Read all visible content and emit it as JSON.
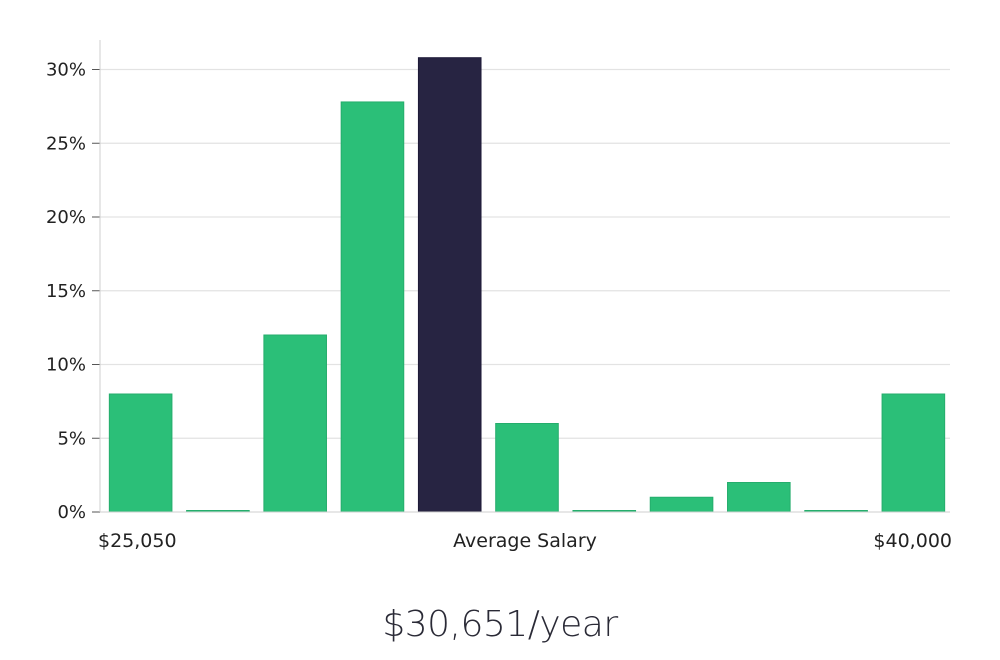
{
  "chart_data": {
    "type": "bar",
    "values": [
      8,
      0,
      12,
      27.8,
      30.8,
      6,
      0,
      1,
      2,
      0,
      8
    ],
    "highlight_index": 4,
    "ylim": [
      0,
      32
    ],
    "yticks": [
      {
        "value": 0,
        "label": "0%"
      },
      {
        "value": 5,
        "label": "5%"
      },
      {
        "value": 10,
        "label": "10%"
      },
      {
        "value": 15,
        "label": "15%"
      },
      {
        "value": 20,
        "label": "20%"
      },
      {
        "value": 25,
        "label": "25%"
      },
      {
        "value": 30,
        "label": "30%"
      }
    ],
    "x_labels": {
      "min": "$25,050",
      "center": "Average Salary",
      "max": "$40,000"
    },
    "grid": true,
    "colors": {
      "bar": "#2bbf78",
      "highlight": "#272442",
      "grid": "#e3e3e3",
      "axis": "#cfcfcf"
    }
  },
  "summary": {
    "average_salary": "$30,651/year"
  }
}
